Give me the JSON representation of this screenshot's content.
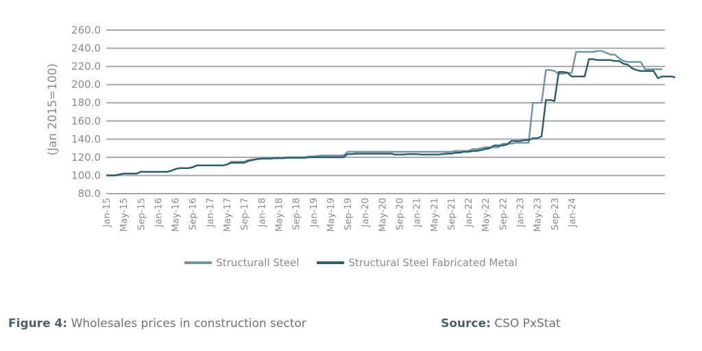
{
  "chart_data": {
    "type": "line",
    "title": "",
    "xlabel": "",
    "ylabel": "(Jan 2015=100)",
    "ylim": [
      80,
      260
    ],
    "yticks": [
      "80.0",
      "100.0",
      "120.0",
      "140.0",
      "160.0",
      "180.0",
      "200.0",
      "220.0",
      "240.0",
      "260.0"
    ],
    "grid": true,
    "legend_position": "bottom",
    "xtick_labels": [
      "Jan-15",
      "May-15",
      "Sep-15",
      "Jan-16",
      "May-16",
      "Sep-16",
      "Jan-17",
      "May-17",
      "Sep-17",
      "Jan-18",
      "May-18",
      "Sep-18",
      "Jan-19",
      "May-19",
      "Sep-19",
      "Jan-20",
      "May-20",
      "Sep-20",
      "Jan-21",
      "May-21",
      "Sep-21",
      "Jan-22",
      "May-22",
      "Sep-22",
      "Jan-23",
      "May-23",
      "Sep-23",
      "Jan-24"
    ],
    "x_start": "Jan-15",
    "x_frequency": "monthly",
    "series": [
      {
        "name": "Structurall Steel",
        "color": "#6f98a3",
        "values": [
          100,
          100,
          100,
          101,
          102,
          102,
          102,
          102,
          104,
          104,
          104,
          104,
          104,
          104,
          104,
          105,
          107,
          108,
          108,
          108,
          109,
          111,
          111,
          111,
          111,
          111,
          111,
          111,
          112,
          115,
          115,
          115,
          115,
          117,
          117.5,
          118,
          119,
          119,
          119,
          119.5,
          119.5,
          119.5,
          120,
          120,
          120,
          120,
          120,
          121,
          121,
          121.5,
          122,
          122,
          122,
          122,
          122,
          122,
          126,
          126,
          126,
          126,
          126,
          126,
          126,
          126,
          126,
          126,
          126,
          126,
          126,
          126,
          126,
          126,
          126,
          126,
          126,
          126,
          126,
          126,
          126,
          126,
          126,
          127,
          127,
          127,
          127,
          129,
          129,
          130,
          131,
          131,
          131,
          131,
          135,
          135,
          135,
          136,
          136,
          136,
          136,
          180,
          180,
          180,
          216,
          216,
          215,
          212,
          212,
          213,
          213,
          236,
          236,
          236,
          236,
          236,
          237,
          237,
          235,
          233,
          233,
          229,
          226,
          225,
          225,
          225,
          225,
          217,
          217,
          217,
          217,
          217
        ]
      },
      {
        "name": "Structural Steel Fabricated Metal",
        "color": "#2f5d6e",
        "values": [
          100,
          100,
          100,
          101,
          102,
          102,
          102,
          102,
          104,
          104,
          104,
          104,
          104,
          104,
          104,
          105,
          107,
          108,
          108,
          108,
          109,
          111,
          111,
          111,
          111,
          111,
          111,
          111,
          112,
          114,
          114,
          114,
          114,
          116,
          117,
          118,
          118.5,
          118.5,
          118.5,
          119,
          119,
          119,
          119.5,
          119.5,
          119.5,
          119.5,
          119.5,
          120,
          120,
          120,
          120,
          120,
          120,
          120,
          120,
          120,
          123.5,
          123.5,
          124,
          124,
          124,
          124,
          124,
          124,
          124,
          124,
          124,
          123,
          123,
          123,
          123.5,
          123.5,
          123.5,
          123,
          123,
          123,
          123,
          123,
          123.5,
          124,
          124,
          125,
          125,
          126,
          126,
          127,
          127,
          128,
          129,
          130,
          133,
          133,
          133,
          134,
          138,
          138,
          138,
          139,
          139,
          141,
          141,
          143,
          183,
          183,
          182,
          214,
          214,
          213,
          209,
          209,
          209,
          209,
          228,
          228,
          227,
          227,
          227,
          227,
          226,
          226,
          223,
          222,
          218,
          216,
          215,
          215,
          215,
          215,
          207,
          209,
          209,
          209,
          208
        ]
      }
    ]
  },
  "legend": {
    "items": [
      {
        "label": "Structurall Steel",
        "color": "#6f98a3"
      },
      {
        "label": "Structural Steel Fabricated Metal",
        "color": "#2f5d6e"
      }
    ]
  },
  "caption": {
    "figure_label": "Figure 4:",
    "figure_text": " Wholesales prices in construction sector",
    "source_label": "Source:",
    "source_text": " CSO PxStat"
  }
}
